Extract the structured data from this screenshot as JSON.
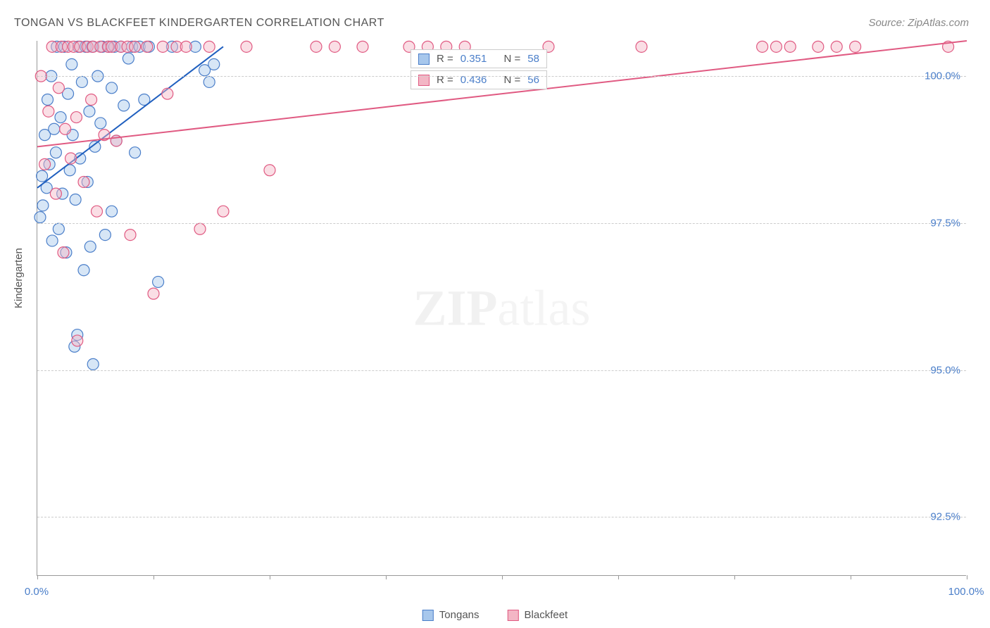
{
  "title": "TONGAN VS BLACKFEET KINDERGARTEN CORRELATION CHART",
  "source": "Source: ZipAtlas.com",
  "watermark_a": "ZIP",
  "watermark_b": "atlas",
  "y_axis_label": "Kindergarten",
  "chart": {
    "type": "scatter",
    "xlim": [
      0,
      100
    ],
    "ylim": [
      91.5,
      100.6
    ],
    "yticks": [
      92.5,
      95.0,
      97.5,
      100.0
    ],
    "ytick_labels": [
      "92.5%",
      "95.0%",
      "97.5%",
      "100.0%"
    ],
    "xticks": [
      0,
      12.5,
      25,
      37.5,
      50,
      62.5,
      75,
      87.5,
      100
    ],
    "xtick_labels": {
      "0": "0.0%",
      "100": "100.0%"
    },
    "background_color": "#ffffff",
    "grid_color": "#cccccc",
    "axis_color": "#999999",
    "marker_radius": 8,
    "marker_opacity": 0.45,
    "line_width": 2,
    "series": [
      {
        "name": "Tongans",
        "fill": "#a7c7ec",
        "stroke": "#4a7ec9",
        "line_color": "#1f5fbf",
        "R": "0.351",
        "N": "58",
        "trend": {
          "x1": 0,
          "y1": 98.1,
          "x2": 20,
          "y2": 100.5
        },
        "points": [
          [
            0.3,
            97.6
          ],
          [
            0.5,
            98.3
          ],
          [
            0.6,
            97.8
          ],
          [
            0.8,
            99.0
          ],
          [
            1.0,
            98.1
          ],
          [
            1.1,
            99.6
          ],
          [
            1.3,
            98.5
          ],
          [
            1.5,
            100.0
          ],
          [
            1.6,
            97.2
          ],
          [
            1.8,
            99.1
          ],
          [
            2.0,
            98.7
          ],
          [
            2.1,
            100.5
          ],
          [
            2.3,
            97.4
          ],
          [
            2.5,
            99.3
          ],
          [
            2.7,
            98.0
          ],
          [
            2.9,
            100.5
          ],
          [
            3.1,
            97.0
          ],
          [
            3.3,
            99.7
          ],
          [
            3.5,
            98.4
          ],
          [
            3.7,
            100.2
          ],
          [
            3.8,
            99.0
          ],
          [
            4.0,
            95.4
          ],
          [
            4.1,
            97.9
          ],
          [
            4.3,
            95.6
          ],
          [
            4.4,
            100.5
          ],
          [
            4.6,
            98.6
          ],
          [
            4.8,
            99.9
          ],
          [
            5.0,
            96.7
          ],
          [
            5.2,
            100.5
          ],
          [
            5.4,
            98.2
          ],
          [
            5.6,
            99.4
          ],
          [
            5.7,
            97.1
          ],
          [
            5.9,
            100.5
          ],
          [
            6.0,
            95.1
          ],
          [
            6.2,
            98.8
          ],
          [
            6.5,
            100.0
          ],
          [
            6.8,
            99.2
          ],
          [
            7.0,
            100.5
          ],
          [
            7.3,
            97.3
          ],
          [
            7.7,
            100.5
          ],
          [
            8.0,
            99.8
          ],
          [
            8.0,
            97.7
          ],
          [
            8.3,
            100.5
          ],
          [
            8.5,
            98.9
          ],
          [
            9.0,
            100.5
          ],
          [
            9.3,
            99.5
          ],
          [
            9.8,
            100.3
          ],
          [
            10.2,
            100.5
          ],
          [
            10.5,
            98.7
          ],
          [
            11.0,
            100.5
          ],
          [
            11.5,
            99.6
          ],
          [
            12.0,
            100.5
          ],
          [
            13.0,
            96.5
          ],
          [
            14.5,
            100.5
          ],
          [
            17.0,
            100.5
          ],
          [
            18.0,
            100.1
          ],
          [
            18.5,
            99.9
          ],
          [
            19.0,
            100.2
          ]
        ]
      },
      {
        "name": "Blackfeet",
        "fill": "#f3b6c5",
        "stroke": "#e05a82",
        "line_color": "#e05a82",
        "R": "0.436",
        "N": "56",
        "trend": {
          "x1": 0,
          "y1": 98.8,
          "x2": 100,
          "y2": 100.6
        },
        "points": [
          [
            0.4,
            100.0
          ],
          [
            0.8,
            98.5
          ],
          [
            1.2,
            99.4
          ],
          [
            1.6,
            100.5
          ],
          [
            2.0,
            98.0
          ],
          [
            2.3,
            99.8
          ],
          [
            2.6,
            100.5
          ],
          [
            2.8,
            97.0
          ],
          [
            3.0,
            99.1
          ],
          [
            3.3,
            100.5
          ],
          [
            3.6,
            98.6
          ],
          [
            3.9,
            100.5
          ],
          [
            4.2,
            99.3
          ],
          [
            4.3,
            95.5
          ],
          [
            4.6,
            100.5
          ],
          [
            5.0,
            98.2
          ],
          [
            5.4,
            100.5
          ],
          [
            5.8,
            99.6
          ],
          [
            6.0,
            100.5
          ],
          [
            6.4,
            97.7
          ],
          [
            6.8,
            100.5
          ],
          [
            7.2,
            99.0
          ],
          [
            7.6,
            100.5
          ],
          [
            8.0,
            100.5
          ],
          [
            8.5,
            98.9
          ],
          [
            9.0,
            100.5
          ],
          [
            9.7,
            100.5
          ],
          [
            10.0,
            97.3
          ],
          [
            10.5,
            100.5
          ],
          [
            11.8,
            100.5
          ],
          [
            12.5,
            96.3
          ],
          [
            13.5,
            100.5
          ],
          [
            14.0,
            99.7
          ],
          [
            15.0,
            100.5
          ],
          [
            16.0,
            100.5
          ],
          [
            17.5,
            97.4
          ],
          [
            18.5,
            100.5
          ],
          [
            20.0,
            97.7
          ],
          [
            22.5,
            100.5
          ],
          [
            25.0,
            98.4
          ],
          [
            30.0,
            100.5
          ],
          [
            32.0,
            100.5
          ],
          [
            35.0,
            100.5
          ],
          [
            40.0,
            100.5
          ],
          [
            42.0,
            100.5
          ],
          [
            44.0,
            100.5
          ],
          [
            46.0,
            100.5
          ],
          [
            65.0,
            100.5
          ],
          [
            78.0,
            100.5
          ],
          [
            79.5,
            100.5
          ],
          [
            81.0,
            100.5
          ],
          [
            84.0,
            100.5
          ],
          [
            86.0,
            100.5
          ],
          [
            88.0,
            100.5
          ],
          [
            98.0,
            100.5
          ],
          [
            55.0,
            100.5
          ]
        ]
      }
    ]
  },
  "legend": {
    "series1_label": "Tongans",
    "series2_label": "Blackfeet"
  },
  "stats_labels": {
    "R": "R =",
    "N": "N ="
  }
}
